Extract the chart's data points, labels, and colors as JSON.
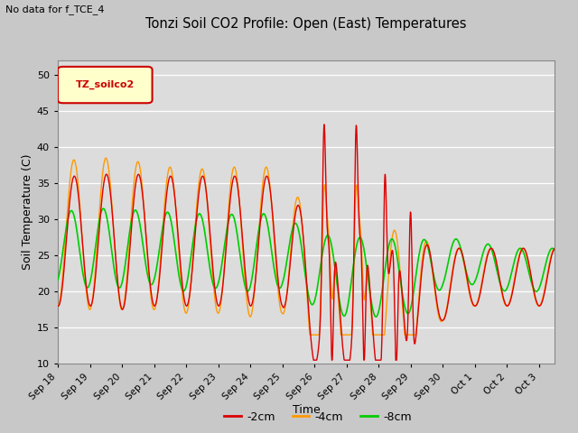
{
  "title": "Tonzi Soil CO2 Profile: Open (East) Temperatures",
  "subtitle": "No data for f_TCE_4",
  "ylabel": "Soil Temperature (C)",
  "xlabel": "Time",
  "legend_label": "TZ_soilco2",
  "ylim": [
    10,
    52
  ],
  "yticks": [
    10,
    15,
    20,
    25,
    30,
    35,
    40,
    45,
    50
  ],
  "series_labels": [
    "-2cm",
    "-4cm",
    "-8cm"
  ],
  "series_colors": [
    "#dd0000",
    "#ff9900",
    "#00cc00"
  ],
  "fig_bg_color": "#c8c8c8",
  "plot_bg_color": "#e0e0e0",
  "x_tick_labels": [
    "Sep 18",
    "Sep 19",
    "Sep 20",
    "Sep 21",
    "Sep 22",
    "Sep 23",
    "Sep 24",
    "Sep 25",
    "Sep 26",
    "Sep 27",
    "Sep 28",
    "Sep 29",
    "Sep 30",
    "Oct 1",
    "Oct 2",
    "Oct 3"
  ],
  "n_days": 15.5
}
